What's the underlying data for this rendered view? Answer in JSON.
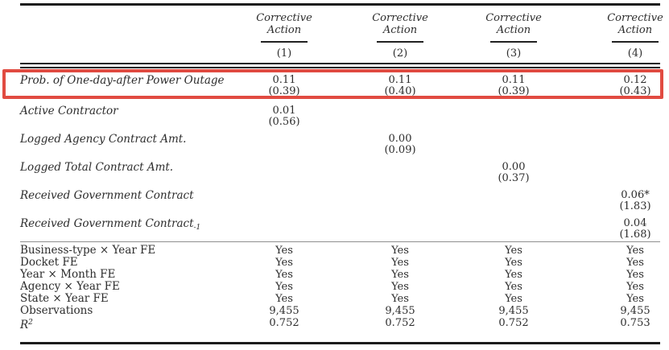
{
  "meta": {
    "description": "Regression results table: effect of power outages on corrective action",
    "highlight_box_color": "#e14b41",
    "rule_color": "#1c1c1c",
    "text_color": "#2d2d2d"
  },
  "header": {
    "columns": [
      {
        "title_line1": "Corrective",
        "title_line2": "Action",
        "number": "(1)"
      },
      {
        "title_line1": "Corrective",
        "title_line2": "Action",
        "number": "(2)"
      },
      {
        "title_line1": "Corrective",
        "title_line2": "Action",
        "number": "(3)"
      },
      {
        "title_line1": "Corrective",
        "title_line2": "Action",
        "number": "(4)"
      }
    ]
  },
  "coefficients": [
    {
      "label": "Prob. of One-day-after Power Outage",
      "estimates": [
        "0.11",
        "0.11",
        "0.11",
        "0.12"
      ],
      "tstats": [
        "(0.39)",
        "(0.40)",
        "(0.39)",
        "(0.43)"
      ],
      "highlighted": "true"
    },
    {
      "label": "Active Contractor",
      "estimates": [
        "0.01",
        "",
        "",
        ""
      ],
      "tstats": [
        "(0.56)",
        "",
        "",
        ""
      ]
    },
    {
      "label": "Logged Agency Contract Amt.",
      "estimates": [
        "",
        "0.00",
        "",
        ""
      ],
      "tstats": [
        "",
        "(0.09)",
        "",
        ""
      ]
    },
    {
      "label": "Logged Total Contract Amt.",
      "estimates": [
        "",
        "",
        "0.00",
        ""
      ],
      "tstats": [
        "",
        "",
        "(0.37)",
        ""
      ]
    },
    {
      "label": "Received Government Contract",
      "estimates": [
        "",
        "",
        "",
        "0.06*"
      ],
      "tstats": [
        "",
        "",
        "",
        "(1.83)"
      ]
    },
    {
      "label": "Received Government Contract",
      "label_sub": "-1",
      "estimates": [
        "",
        "",
        "",
        "0.04"
      ],
      "tstats": [
        "",
        "",
        "",
        "(1.68)"
      ]
    }
  ],
  "summary": [
    {
      "label": "Business-type × Year FE",
      "values": [
        "Yes",
        "Yes",
        "Yes",
        "Yes"
      ]
    },
    {
      "label": "Docket FE",
      "values": [
        "Yes",
        "Yes",
        "Yes",
        "Yes"
      ]
    },
    {
      "label": "Year × Month FE",
      "values": [
        "Yes",
        "Yes",
        "Yes",
        "Yes"
      ]
    },
    {
      "label": "Agency × Year FE",
      "values": [
        "Yes",
        "Yes",
        "Yes",
        "Yes"
      ]
    },
    {
      "label": "State × Year FE",
      "values": [
        "Yes",
        "Yes",
        "Yes",
        "Yes"
      ]
    },
    {
      "label": "Observations",
      "values": [
        "9,455",
        "9,455",
        "9,455",
        "9,455"
      ]
    },
    {
      "label": "R",
      "label_sup": "2",
      "values": [
        "0.752",
        "0.752",
        "0.752",
        "0.753"
      ]
    }
  ]
}
